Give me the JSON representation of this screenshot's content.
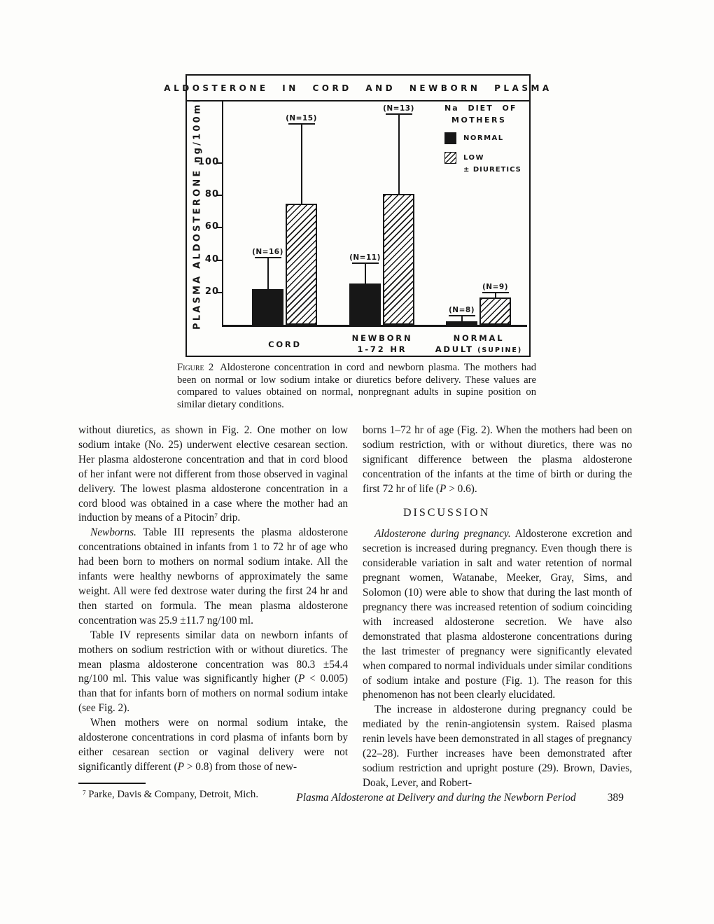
{
  "figure": {
    "title": "ALDOSTERONE IN CORD AND NEWBORN PLASMA",
    "y_axis_label": "PLASMA ALDOSTERONE ng/100ml",
    "legend": {
      "heading_line1": "Na DIET OF",
      "heading_line2": "MOTHERS",
      "item1_label": "NORMAL",
      "item2_label": "LOW",
      "item2_label2": "± DIURETICS"
    },
    "group_labels": [
      {
        "line1": "CORD",
        "line2": "",
        "line2_small": ""
      },
      {
        "line1": "NEWBORN",
        "line2": "1-72 HR",
        "line2_small": ""
      },
      {
        "line1": "NORMAL",
        "line2": "ADULT",
        "line2_small": "(SUPINE)"
      }
    ]
  },
  "chart_data": {
    "type": "bar",
    "title": "ALDOSTERONE IN CORD AND NEWBORN PLASMA",
    "xlabel": "",
    "ylabel": "PLASMA ALDOSTERONE ng/100ml",
    "ylim": [
      0,
      138
    ],
    "yticks": [
      20,
      40,
      60,
      80,
      100
    ],
    "grid": false,
    "categories": [
      "CORD",
      "NEWBORN 1-72 HR",
      "NORMAL ADULT (SUPINE)"
    ],
    "series": [
      {
        "name": "NORMAL",
        "pattern": "solid-black",
        "values": [
          22,
          25.5,
          2
        ],
        "err_upper": [
          19,
          12,
          3
        ],
        "n_labels": [
          "(N=16)",
          "(N=11)",
          "(N=8)"
        ]
      },
      {
        "name": "LOW ± DIURETICS",
        "pattern": "diagonal-hatch",
        "values": [
          75,
          81,
          17
        ],
        "err_upper": [
          49,
          49,
          2.5
        ],
        "n_labels": [
          "(N=15)",
          "(N=13)",
          "(N=9)"
        ]
      }
    ],
    "legend_title": "Na DIET OF MOTHERS",
    "legend_position": "upper-right"
  },
  "caption": {
    "label": "Figure 2",
    "text": "Aldosterone concentration in cord and newborn plasma. The mothers had been on normal or low sodium intake or diuretics before delivery. These values are compared to values obtained on normal, nonpregnant adults in supine position on similar dietary conditions."
  },
  "columns": {
    "left": [
      {
        "kind": "paragraph",
        "indent": false,
        "segments": [
          {
            "t": "without diuretics, as shown in Fig. 2. One mother on low sodium intake (No. 25) underwent elective cesarean section. Her plasma aldosterone concentration and that in cord blood of her infant were not different from those observed in vaginal delivery. The lowest plasma aldosterone concentration in a cord blood was obtained in a case where the mother had an induction by means of a Pitocin"
          },
          {
            "sup": "7"
          },
          {
            "t": " drip."
          }
        ]
      },
      {
        "kind": "paragraph",
        "indent": true,
        "segments": [
          {
            "i": "Newborns."
          },
          {
            "t": " Table III represents the plasma aldosterone concentrations obtained in infants from 1 to 72 hr of age who had been born to mothers on normal sodium intake. All the infants were healthy newborns of approximately the same weight. All were fed dextrose water during the first 24 hr and then started on formula. The mean plasma aldosterone concentration was 25.9 ±11.7 ng/100 ml."
          }
        ]
      },
      {
        "kind": "paragraph",
        "indent": true,
        "segments": [
          {
            "t": "Table IV represents similar data on newborn infants of mothers on sodium restriction with or without diuretics. The mean plasma aldosterone concentration was 80.3 ±54.4 ng/100 ml. This value was significantly higher ("
          },
          {
            "i": "P"
          },
          {
            "t": " < 0.005) than that for infants born of mothers on normal sodium intake (see Fig. 2)."
          }
        ]
      },
      {
        "kind": "paragraph",
        "indent": true,
        "segments": [
          {
            "t": "When mothers were on normal sodium intake, the aldosterone concentrations in cord plasma of infants born by either cesarean section or vaginal delivery were not significantly different ("
          },
          {
            "i": "P"
          },
          {
            "t": " > 0.8) from those of new-"
          }
        ]
      },
      {
        "kind": "footnote",
        "segments": [
          {
            "sup": "7"
          },
          {
            "t": " Parke, Davis & Company, Detroit, Mich."
          }
        ]
      }
    ],
    "right": [
      {
        "kind": "paragraph",
        "indent": false,
        "segments": [
          {
            "t": "borns 1–72 hr of age (Fig. 2). When the mothers had been on sodium restriction, with or without diuretics, there was no significant difference between the plasma aldosterone concentration of the infants at the time of birth or during the first 72 hr of life ("
          },
          {
            "i": "P"
          },
          {
            "t": " > 0.6)."
          }
        ]
      },
      {
        "kind": "heading",
        "text": "DISCUSSION"
      },
      {
        "kind": "paragraph",
        "indent": true,
        "segments": [
          {
            "i": "Aldosterone during pregnancy."
          },
          {
            "t": " Aldosterone excretion and secretion is increased during pregnancy. Even though there is considerable variation in salt and water retention of normal pregnant women, Watanabe, Meeker, Gray, Sims, and Solomon (10) were able to show that during the last month of pregnancy there was increased retention of sodium coinciding with increased aldosterone secretion. We have also demonstrated that plasma aldosterone concentrations during the last trimester of pregnancy were significantly elevated when compared to normal individuals under similar conditions of sodium intake and posture (Fig. 1). The reason for this phenomenon has not been clearly elucidated."
          }
        ]
      },
      {
        "kind": "paragraph",
        "indent": true,
        "segments": [
          {
            "t": "The increase in aldosterone during pregnancy could be mediated by the renin-angiotensin system. Raised plasma renin levels have been demonstrated in all stages of pregnancy (22–28). Further increases have been demonstrated after sodium restriction and upright posture (29). Brown, Davies, Doak, Lever, and Robert-"
          }
        ]
      }
    ]
  },
  "footer": {
    "running_title": "Plasma Aldosterone at Delivery and during the Newborn Period",
    "page_number": "389"
  },
  "ink_color": "#171717",
  "paper_color": "#fdfdfb"
}
